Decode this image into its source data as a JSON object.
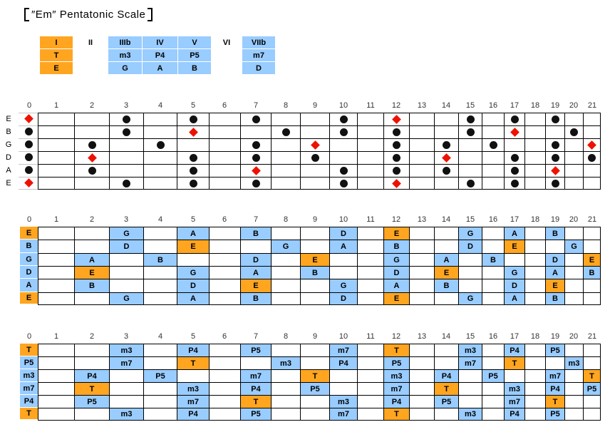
{
  "title": {
    "full": "【″Em″ Pentatonic Scale】",
    "bracket_open": "【",
    "text": "″Em″ Pentatonic Scale",
    "bracket_close": "】"
  },
  "colors": {
    "tonic_fill": "#FFA520",
    "scale_fill": "#99CCFF",
    "tonic_marker": "#EE1100",
    "note_marker": "#111111",
    "grid_line": "#000000",
    "open_area_line": "#C6C6C6",
    "fret_number_text": "#333333"
  },
  "scale_table": {
    "columns": [
      {
        "degree": "I",
        "interval": "T",
        "note": "E",
        "type": "tonic"
      },
      {
        "degree": "II",
        "interval": "",
        "note": "",
        "type": "empty"
      },
      {
        "degree": "IIIb",
        "interval": "m3",
        "note": "G",
        "type": "scale"
      },
      {
        "degree": "IV",
        "interval": "P4",
        "note": "A",
        "type": "scale"
      },
      {
        "degree": "V",
        "interval": "P5",
        "note": "B",
        "type": "scale"
      },
      {
        "degree": "VI",
        "interval": "",
        "note": "",
        "type": "empty"
      },
      {
        "degree": "VIIb",
        "interval": "m7",
        "note": "D",
        "type": "scale"
      }
    ]
  },
  "fretboard": {
    "fret_labels": [
      "0",
      "1",
      "2",
      "3",
      "4",
      "5",
      "6",
      "7",
      "8",
      "9",
      "10",
      "11",
      "12",
      "13",
      "14",
      "15",
      "16",
      "17",
      "18",
      "19",
      "20",
      "21"
    ],
    "strings": [
      "E",
      "B",
      "G",
      "D",
      "A",
      "E"
    ],
    "tonic_note": "E",
    "positions": [
      [
        [
          0,
          "E",
          "T"
        ],
        [
          3,
          "G",
          "m3"
        ],
        [
          5,
          "A",
          "P4"
        ],
        [
          7,
          "B",
          "P5"
        ],
        [
          10,
          "D",
          "m7"
        ],
        [
          12,
          "E",
          "T"
        ],
        [
          15,
          "G",
          "m3"
        ],
        [
          17,
          "A",
          "P4"
        ],
        [
          19,
          "B",
          "P5"
        ]
      ],
      [
        [
          0,
          "B",
          "P5"
        ],
        [
          3,
          "D",
          "m7"
        ],
        [
          5,
          "E",
          "T"
        ],
        [
          8,
          "G",
          "m3"
        ],
        [
          10,
          "A",
          "P4"
        ],
        [
          12,
          "B",
          "P5"
        ],
        [
          15,
          "D",
          "m7"
        ],
        [
          17,
          "E",
          "T"
        ],
        [
          20,
          "G",
          "m3"
        ]
      ],
      [
        [
          0,
          "G",
          "m3"
        ],
        [
          2,
          "A",
          "P4"
        ],
        [
          4,
          "B",
          "P5"
        ],
        [
          7,
          "D",
          "m7"
        ],
        [
          9,
          "E",
          "T"
        ],
        [
          12,
          "G",
          "m3"
        ],
        [
          14,
          "A",
          "P4"
        ],
        [
          16,
          "B",
          "P5"
        ],
        [
          19,
          "D",
          "m7"
        ],
        [
          21,
          "E",
          "T"
        ]
      ],
      [
        [
          0,
          "D",
          "m7"
        ],
        [
          2,
          "E",
          "T"
        ],
        [
          5,
          "G",
          "m3"
        ],
        [
          7,
          "A",
          "P4"
        ],
        [
          9,
          "B",
          "P5"
        ],
        [
          12,
          "D",
          "m7"
        ],
        [
          14,
          "E",
          "T"
        ],
        [
          17,
          "G",
          "m3"
        ],
        [
          19,
          "A",
          "P4"
        ],
        [
          21,
          "B",
          "P5"
        ]
      ],
      [
        [
          0,
          "A",
          "P4"
        ],
        [
          2,
          "B",
          "P5"
        ],
        [
          5,
          "D",
          "m7"
        ],
        [
          7,
          "E",
          "T"
        ],
        [
          10,
          "G",
          "m3"
        ],
        [
          12,
          "A",
          "P4"
        ],
        [
          14,
          "B",
          "P5"
        ],
        [
          17,
          "D",
          "m7"
        ],
        [
          19,
          "E",
          "T"
        ]
      ],
      [
        [
          0,
          "E",
          "T"
        ],
        [
          3,
          "G",
          "m3"
        ],
        [
          5,
          "A",
          "P4"
        ],
        [
          7,
          "B",
          "P5"
        ],
        [
          10,
          "D",
          "m7"
        ],
        [
          12,
          "E",
          "T"
        ],
        [
          15,
          "G",
          "m3"
        ],
        [
          17,
          "A",
          "P4"
        ],
        [
          19,
          "B",
          "P5"
        ]
      ]
    ]
  },
  "boards": [
    {
      "style": "dots",
      "name": "dot-board"
    },
    {
      "style": "notes",
      "name": "note-board"
    },
    {
      "style": "intervals",
      "name": "interval-board"
    }
  ]
}
